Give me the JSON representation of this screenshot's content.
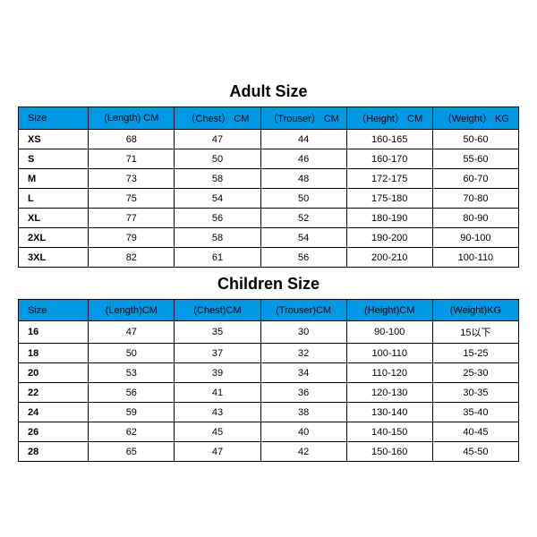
{
  "colors": {
    "header_bg": "#0099e5",
    "border": "#000000",
    "text": "#000000",
    "background": "#ffffff"
  },
  "adult": {
    "title": "Adult Size",
    "columns": [
      "Size",
      "(Length)   CM",
      "（Chest） CM",
      "（Trouser） CM",
      "（Height） CM",
      "（Weight） KG"
    ],
    "rows": [
      [
        "XS",
        "68",
        "47",
        "44",
        "160-165",
        "50-60"
      ],
      [
        "S",
        "71",
        "50",
        "46",
        "160-170",
        "55-60"
      ],
      [
        "M",
        "73",
        "58",
        "48",
        "172-175",
        "60-70"
      ],
      [
        "L",
        "75",
        "54",
        "50",
        "175-180",
        "70-80"
      ],
      [
        "XL",
        "77",
        "56",
        "52",
        "180-190",
        "80-90"
      ],
      [
        "2XL",
        "79",
        "58",
        "54",
        "190-200",
        "90-100"
      ],
      [
        "3XL",
        "82",
        "61",
        "56",
        "200-210",
        "100-110"
      ]
    ]
  },
  "children": {
    "title": "Children Size",
    "columns": [
      "Size",
      "(Length)CM",
      "(Chest)CM",
      "(Trouser)CM",
      "(Height)CM",
      "(Weight)KG"
    ],
    "rows": [
      [
        "16",
        "47",
        "35",
        "30",
        "90-100",
        "15以下"
      ],
      [
        "18",
        "50",
        "37",
        "32",
        "100-110",
        "15-25"
      ],
      [
        "20",
        "53",
        "39",
        "34",
        "110-120",
        "25-30"
      ],
      [
        "22",
        "56",
        "41",
        "36",
        "120-130",
        "30-35"
      ],
      [
        "24",
        "59",
        "43",
        "38",
        "130-140",
        "35-40"
      ],
      [
        "26",
        "62",
        "45",
        "40",
        "140-150",
        "40-45"
      ],
      [
        "28",
        "65",
        "47",
        "42",
        "150-160",
        "45-50"
      ]
    ]
  }
}
